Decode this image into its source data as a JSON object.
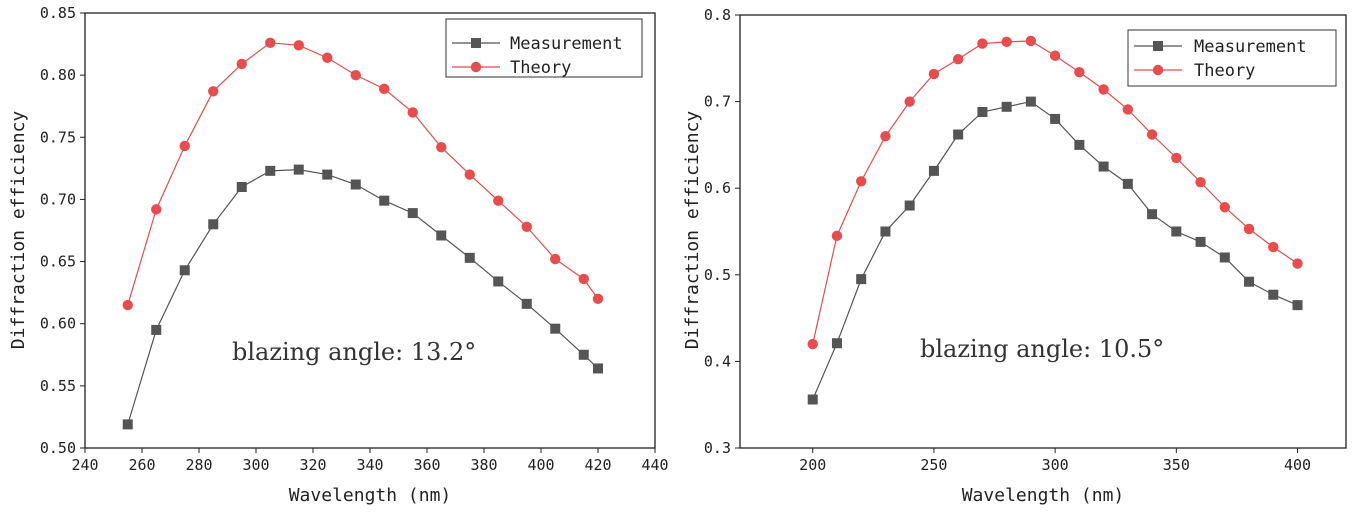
{
  "chart_data": [
    {
      "type": "line",
      "xlabel": "Wavelength (nm)",
      "ylabel": "Diffraction efficiency",
      "xlim": [
        240,
        440
      ],
      "ylim": [
        0.5,
        0.85
      ],
      "xticks": [
        "240",
        "260",
        "280",
        "300",
        "320",
        "340",
        "360",
        "380",
        "400",
        "420",
        "440"
      ],
      "yticks": [
        "0.50",
        "0.55",
        "0.60",
        "0.65",
        "0.70",
        "0.75",
        "0.80",
        "0.85"
      ],
      "legend_position": "top-right",
      "annotation": "blazing angle:  13.2°",
      "series": [
        {
          "name": "Measurement",
          "color": "#555555",
          "marker": "square",
          "x": [
            255,
            265,
            275,
            285,
            295,
            305,
            315,
            325,
            335,
            345,
            355,
            365,
            375,
            385,
            395,
            405,
            415,
            420
          ],
          "y": [
            0.519,
            0.595,
            0.643,
            0.68,
            0.71,
            0.723,
            0.724,
            0.72,
            0.712,
            0.699,
            0.689,
            0.671,
            0.653,
            0.634,
            0.616,
            0.596,
            0.575,
            0.564
          ]
        },
        {
          "name": "Theory",
          "color": "#e84c4c",
          "marker": "circle",
          "x": [
            255,
            265,
            275,
            285,
            295,
            305,
            315,
            325,
            335,
            345,
            355,
            365,
            375,
            385,
            395,
            405,
            415,
            420
          ],
          "y": [
            0.615,
            0.692,
            0.743,
            0.787,
            0.809,
            0.826,
            0.824,
            0.814,
            0.8,
            0.789,
            0.77,
            0.742,
            0.72,
            0.699,
            0.678,
            0.652,
            0.636,
            0.62
          ]
        }
      ]
    },
    {
      "type": "line",
      "xlabel": "Wavelength (nm)",
      "ylabel": "Diffraction efficiency",
      "xlim": [
        170,
        420
      ],
      "ylim": [
        0.3,
        0.8
      ],
      "xticks": [
        "200",
        "250",
        "300",
        "350",
        "400"
      ],
      "xtick_values": [
        200,
        250,
        300,
        350,
        400
      ],
      "yticks": [
        "0.3",
        "0.4",
        "0.5",
        "0.6",
        "0.7",
        "0.8"
      ],
      "legend_position": "top-right",
      "annotation": "blazing angle:  10.5°",
      "series": [
        {
          "name": "Measurement",
          "color": "#555555",
          "marker": "square",
          "x": [
            200,
            210,
            220,
            230,
            240,
            250,
            260,
            270,
            280,
            290,
            300,
            310,
            320,
            330,
            340,
            350,
            360,
            370,
            380,
            390,
            400
          ],
          "y": [
            0.356,
            0.421,
            0.495,
            0.55,
            0.58,
            0.62,
            0.662,
            0.688,
            0.694,
            0.7,
            0.68,
            0.65,
            0.625,
            0.605,
            0.57,
            0.55,
            0.538,
            0.52,
            0.492,
            0.477,
            0.465
          ]
        },
        {
          "name": "Theory",
          "color": "#e84c4c",
          "marker": "circle",
          "x": [
            200,
            210,
            220,
            230,
            240,
            250,
            260,
            270,
            280,
            290,
            300,
            310,
            320,
            330,
            340,
            350,
            360,
            370,
            380,
            390,
            400
          ],
          "y": [
            0.42,
            0.545,
            0.608,
            0.66,
            0.7,
            0.732,
            0.749,
            0.767,
            0.769,
            0.77,
            0.753,
            0.734,
            0.714,
            0.691,
            0.662,
            0.635,
            0.607,
            0.578,
            0.553,
            0.532,
            0.513
          ]
        }
      ]
    }
  ]
}
